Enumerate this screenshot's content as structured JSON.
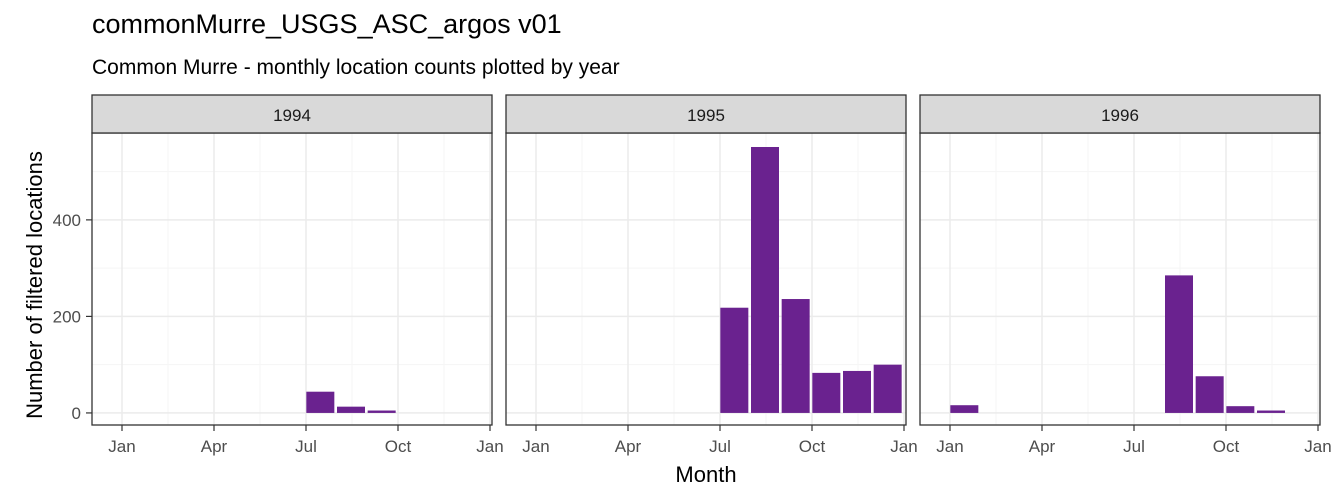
{
  "title": "commonMurre_USGS_ASC_argos v01",
  "subtitle": "Common Murre - monthly location counts plotted by year",
  "xlabel": "Month",
  "ylabel": "Number of filtered locations",
  "colors": {
    "bar": "#6a228f",
    "strip": "#d9d9d9",
    "grid_major": "#ebebeb",
    "grid_minor": "#f5f5f5",
    "border": "#333333"
  },
  "chart_data": {
    "type": "bar",
    "facet_by": "year",
    "ylim": [
      -25,
      580
    ],
    "y_ticks": [
      0,
      200,
      400
    ],
    "x_tick_labels": [
      "Jan",
      "Apr",
      "Jul",
      "Oct",
      "Jan"
    ],
    "grid": true,
    "panels": [
      {
        "year": "1994",
        "months": [
          7,
          8,
          9
        ],
        "values": [
          44,
          13,
          5
        ]
      },
      {
        "year": "1995",
        "months": [
          7,
          8,
          9,
          10,
          11,
          12
        ],
        "values": [
          218,
          551,
          236,
          83,
          87,
          100
        ]
      },
      {
        "year": "1996",
        "months": [
          1,
          8,
          9,
          10,
          11
        ],
        "values": [
          16,
          285,
          76,
          14,
          5
        ]
      }
    ]
  }
}
